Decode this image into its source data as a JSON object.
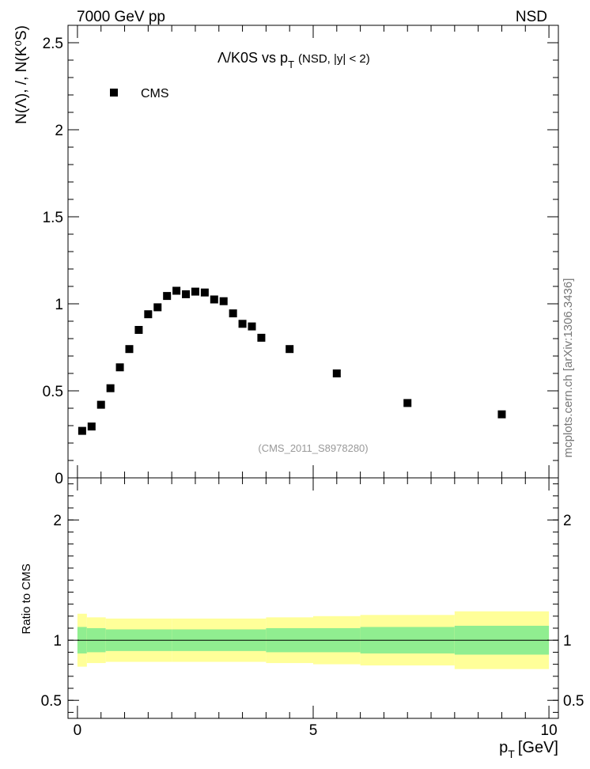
{
  "header": {
    "energy_label": "7000 GeV pp",
    "process_label": "NSD"
  },
  "watermarks": {
    "side": "mcplots.cern.ch [arXiv:1306.3436]",
    "analysis": "(CMS_2011_S8978280)"
  },
  "chart_data": [
    {
      "type": "scatter",
      "title_main": "Λ/K0S vs p",
      "title_sub": "T",
      "title_tail": "(NSD, |y| < 2)",
      "ylabel": "N(Λ), /, N(K⁰S)",
      "xlim": [
        -0.2,
        10.2
      ],
      "ylim": [
        0,
        2.6
      ],
      "yticks": [
        0,
        0.5,
        1,
        1.5,
        2,
        2.5
      ],
      "ytick_labels": [
        "0",
        "0.5",
        "1",
        "1.5",
        "2",
        "2.5"
      ],
      "legend_position": "top-left",
      "series": [
        {
          "name": "CMS",
          "marker": "square",
          "color": "#000000",
          "x": [
            0.1,
            0.3,
            0.5,
            0.7,
            0.9,
            1.1,
            1.3,
            1.5,
            1.7,
            1.9,
            2.1,
            2.3,
            2.5,
            2.7,
            2.9,
            3.1,
            3.3,
            3.5,
            3.7,
            3.9,
            4.5,
            5.5,
            7.0,
            9.0
          ],
          "y": [
            0.27,
            0.295,
            0.42,
            0.515,
            0.635,
            0.74,
            0.85,
            0.94,
            0.98,
            1.045,
            1.075,
            1.055,
            1.07,
            1.065,
            1.025,
            1.015,
            0.945,
            0.885,
            0.87,
            0.805,
            0.74,
            0.6,
            0.43,
            0.365
          ]
        }
      ]
    },
    {
      "type": "area",
      "ylabel": "Ratio to CMS",
      "xlabel": "p",
      "xlabel_sub": "T",
      "xlabel_unit": "[GeV]",
      "xlim": [
        -0.2,
        10.2
      ],
      "ylim": [
        0.35,
        2.35
      ],
      "yticks": [
        0.5,
        1,
        2
      ],
      "ytick_labels": [
        "0.5",
        "1",
        "2"
      ],
      "xticks": [
        0,
        5,
        10
      ],
      "xtick_labels": [
        "0",
        "5",
        "10"
      ],
      "reference_line": 1.0,
      "bands": [
        {
          "name": "stat",
          "color": "#90ee90"
        },
        {
          "name": "total",
          "color": "#ffff99"
        }
      ],
      "bins": [
        {
          "x0": 0.0,
          "x1": 0.2,
          "inner": [
            0.89,
            1.11
          ],
          "outer": [
            0.78,
            1.22
          ]
        },
        {
          "x0": 0.2,
          "x1": 0.6,
          "inner": [
            0.9,
            1.1
          ],
          "outer": [
            0.81,
            1.19
          ]
        },
        {
          "x0": 0.6,
          "x1": 2.0,
          "inner": [
            0.91,
            1.09
          ],
          "outer": [
            0.82,
            1.18
          ]
        },
        {
          "x0": 2.0,
          "x1": 4.0,
          "inner": [
            0.91,
            1.09
          ],
          "outer": [
            0.82,
            1.18
          ]
        },
        {
          "x0": 4.0,
          "x1": 5.0,
          "inner": [
            0.9,
            1.1
          ],
          "outer": [
            0.81,
            1.19
          ]
        },
        {
          "x0": 5.0,
          "x1": 6.0,
          "inner": [
            0.9,
            1.1
          ],
          "outer": [
            0.8,
            1.2
          ]
        },
        {
          "x0": 6.0,
          "x1": 8.0,
          "inner": [
            0.89,
            1.11
          ],
          "outer": [
            0.79,
            1.21
          ]
        },
        {
          "x0": 8.0,
          "x1": 10.0,
          "inner": [
            0.88,
            1.12
          ],
          "outer": [
            0.76,
            1.24
          ]
        }
      ]
    }
  ]
}
